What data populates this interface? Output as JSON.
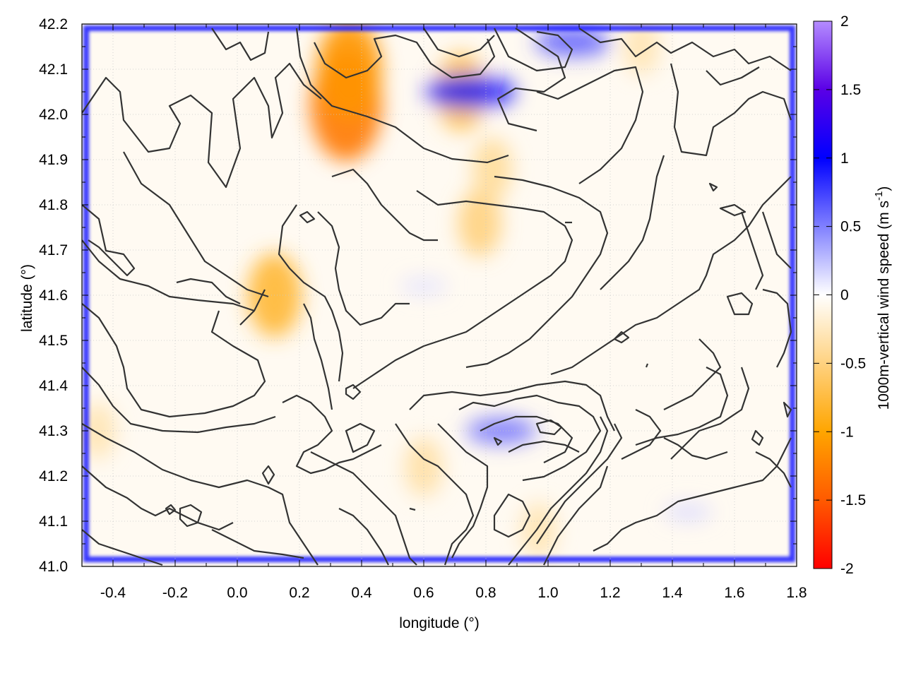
{
  "chart_data": {
    "type": "heatmap",
    "title": "",
    "xlabel": "longitude (°)",
    "ylabel": "latitude (°)",
    "xlim": [
      -0.5,
      1.8
    ],
    "ylim": [
      41.0,
      42.2
    ],
    "xticks": [
      -0.4,
      -0.2,
      0.0,
      0.2,
      0.4,
      0.6,
      0.8,
      1.0,
      1.2,
      1.4,
      1.6,
      1.8
    ],
    "xtick_labels": [
      "-0.4",
      "-0.2",
      "0.0",
      "0.2",
      "0.4",
      "0.6",
      "0.8",
      "1.0",
      "1.2",
      "1.4",
      "1.6",
      "1.8"
    ],
    "yticks": [
      41.0,
      41.1,
      41.2,
      41.3,
      41.4,
      41.5,
      41.6,
      41.7,
      41.8,
      41.9,
      42.0,
      42.1,
      42.2
    ],
    "ytick_labels": [
      "41.0",
      "41.1",
      "41.2",
      "41.3",
      "41.4",
      "41.5",
      "41.6",
      "41.7",
      "41.8",
      "41.9",
      "42.0",
      "42.1",
      "42.2"
    ],
    "grid": true,
    "colorbar": {
      "label_main": "1000m-vertical wind speed (m s",
      "label_sup": "-1",
      "label_end": ")",
      "range": [
        -2,
        2
      ],
      "ticks": [
        -2,
        -1.5,
        -1,
        -0.5,
        0,
        0.5,
        1,
        1.5,
        2
      ],
      "tick_labels": [
        "-2",
        "-1.5",
        "-1",
        "-0.5",
        "0",
        "0.5",
        "1",
        "1.5",
        "2"
      ],
      "palette": [
        {
          "v": -2.0,
          "color": "#ff0000"
        },
        {
          "v": -1.5,
          "color": "#ff5a00"
        },
        {
          "v": -1.0,
          "color": "#ffa500"
        },
        {
          "v": -0.5,
          "color": "#ffd280"
        },
        {
          "v": 0.0,
          "color": "#ffffff"
        },
        {
          "v": 0.5,
          "color": "#8080ff"
        },
        {
          "v": 1.0,
          "color": "#0000ff"
        },
        {
          "v": 1.5,
          "color": "#5a00e6"
        },
        {
          "v": 2.0,
          "color": "#b48cff"
        }
      ]
    },
    "downdraft_centers": [
      {
        "lon": 0.35,
        "lat": 42.02,
        "value": -1.3
      },
      {
        "lon": 0.36,
        "lat": 42.1,
        "value": -1.1
      },
      {
        "lon": 0.12,
        "lat": 41.6,
        "value": -0.8
      },
      {
        "lon": 0.78,
        "lat": 41.76,
        "value": -0.5
      },
      {
        "lon": 0.82,
        "lat": 41.88,
        "value": -0.4
      },
      {
        "lon": -0.45,
        "lat": 41.3,
        "value": -0.3
      },
      {
        "lon": 0.6,
        "lat": 41.22,
        "value": -0.35
      },
      {
        "lon": 0.97,
        "lat": 41.08,
        "value": -0.3
      },
      {
        "lon": 1.3,
        "lat": 42.15,
        "value": -0.3
      },
      {
        "lon": 0.72,
        "lat": 42.05,
        "value": -0.7
      }
    ],
    "updraft_centers": [
      {
        "lon": 0.75,
        "lat": 42.05,
        "value": 1.0
      },
      {
        "lon": 1.08,
        "lat": 42.16,
        "value": 0.7
      },
      {
        "lon": 0.85,
        "lat": 41.3,
        "value": 0.6
      },
      {
        "lon": 1.45,
        "lat": 41.12,
        "value": 0.15
      },
      {
        "lon": 0.6,
        "lat": 41.62,
        "value": 0.12
      }
    ],
    "boundary_frame_value": 1.0
  }
}
